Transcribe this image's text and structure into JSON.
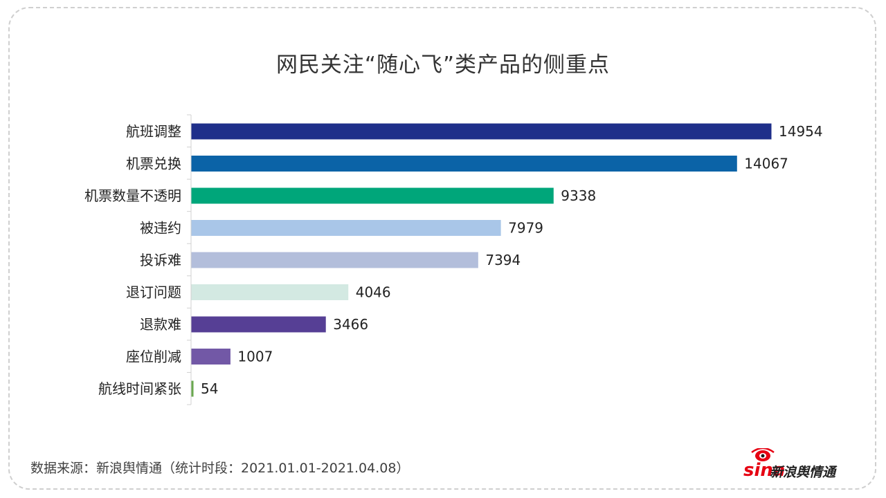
{
  "title": "网民关注“随心飞”类产品的侧重点",
  "source_note": "数据来源：新浪舆情通（统计时段：2021.01.01-2021.04.08）",
  "logo": {
    "brand": "sina",
    "text": "新浪舆情通"
  },
  "chart_data": {
    "type": "bar",
    "orientation": "horizontal",
    "title": "网民关注“随心飞”类产品的侧重点",
    "categories": [
      "航班调整",
      "机票兑换",
      "机票数量不透明",
      "被违约",
      "投诉难",
      "退订问题",
      "退款难",
      "座位削减",
      "航线时间紧张"
    ],
    "values": [
      14954,
      14067,
      9338,
      7979,
      7394,
      4046,
      3466,
      1007,
      54
    ],
    "colors": [
      "#1f2f8a",
      "#0b63a7",
      "#00a67a",
      "#a9c6e8",
      "#b3bedb",
      "#d3e9e2",
      "#563f95",
      "#7258a6",
      "#6aa84f"
    ],
    "xlim": [
      0,
      15000
    ],
    "grid": false,
    "legend": "none",
    "xlabel": "",
    "ylabel": ""
  }
}
